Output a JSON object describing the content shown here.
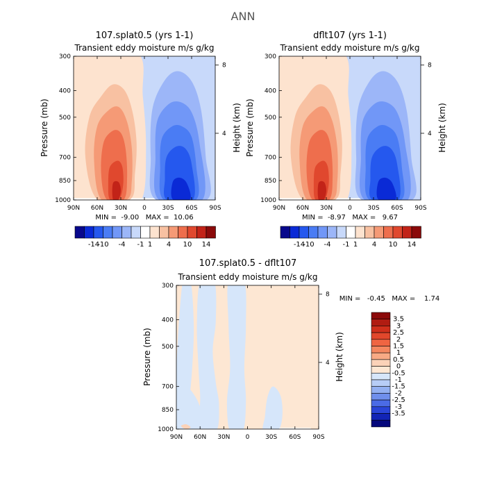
{
  "figure_title": "ANN",
  "chart_data": [
    {
      "type": "heatmap",
      "title": "107.splat0.5 (yrs 1-1)",
      "subtitle": "Transient eddy moisture m/s g/kg",
      "ylabel": "Pressure (mb)",
      "y2label": "Height (km)",
      "x_ticks": [
        "90N",
        "60N",
        "30N",
        "0",
        "30S",
        "60S",
        "90S"
      ],
      "y_ticks": [
        "300",
        "400",
        "500",
        "700",
        "850",
        "1000"
      ],
      "y_ticks_values": [
        300,
        400,
        500,
        700,
        850,
        1000
      ],
      "y2_ticks": [
        "8",
        "4"
      ],
      "ylim": [
        1000,
        300
      ],
      "xlim": [
        90,
        -90
      ],
      "stats": "MIN =  -9.00   MAX =  10.06",
      "min": -9.0,
      "max": 10.06,
      "colorbar_labels": [
        "-14",
        "-10",
        "-4",
        "-1",
        "1",
        "4",
        "10",
        "14"
      ],
      "cores": [
        {
          "lat": 28,
          "p": 960,
          "value": 10.06
        },
        {
          "lat": -42,
          "p": 975,
          "value": -9.0
        }
      ]
    },
    {
      "type": "heatmap",
      "title": "dflt107 (yrs 1-1)",
      "subtitle": "Transient eddy moisture m/s g/kg",
      "ylabel": "Pressure (mb)",
      "y2label": "Height (km)",
      "x_ticks": [
        "90N",
        "60N",
        "30N",
        "0",
        "30S",
        "60S",
        "90S"
      ],
      "y_ticks": [
        "300",
        "400",
        "500",
        "700",
        "850",
        "1000"
      ],
      "y_ticks_values": [
        300,
        400,
        500,
        700,
        850,
        1000
      ],
      "y2_ticks": [
        "8",
        "4"
      ],
      "ylim": [
        1000,
        300
      ],
      "xlim": [
        90,
        -90
      ],
      "stats": "MIN =  -8.97   MAX =   9.67",
      "min": -8.97,
      "max": 9.67,
      "colorbar_labels": [
        "-14",
        "-10",
        "-4",
        "-1",
        "1",
        "4",
        "10",
        "14"
      ],
      "cores": [
        {
          "lat": 28,
          "p": 960,
          "value": 9.67
        },
        {
          "lat": -42,
          "p": 975,
          "value": -8.97
        }
      ]
    },
    {
      "type": "heatmap",
      "title": "107.splat0.5 - dflt107",
      "subtitle": "Transient eddy moisture m/s g/kg",
      "ylabel": "Pressure (mb)",
      "y2label": "Height (km)",
      "x_ticks": [
        "90N",
        "60N",
        "30N",
        "0",
        "30S",
        "60S",
        "90S"
      ],
      "y_ticks": [
        "300",
        "400",
        "500",
        "700",
        "850",
        "1000"
      ],
      "y_ticks_values": [
        300,
        400,
        500,
        700,
        850,
        1000
      ],
      "y2_ticks": [
        "8",
        "4"
      ],
      "ylim": [
        1000,
        300
      ],
      "xlim": [
        90,
        -90
      ],
      "stats": "MIN =   -0.45   MAX =    1.74",
      "min": -0.45,
      "max": 1.74,
      "colorbar_labels": [
        "3.5",
        "3",
        "2.5",
        "2",
        "1.5",
        "1",
        "0.5",
        "0",
        "-0.5",
        "-1",
        "-1.5",
        "-2",
        "-2.5",
        "-3",
        "-3.5"
      ],
      "negative_bands_lat": [
        [
          75,
          40
        ],
        [
          25,
          2
        ]
      ]
    }
  ],
  "colors": {
    "abs_scale": [
      "#08088c",
      "#0a2ad6",
      "#2558ee",
      "#4a7cf4",
      "#7197f7",
      "#9cb6f8",
      "#c8d9fa",
      "#ffffff",
      "#fde3cf",
      "#f8c1a2",
      "#f59a76",
      "#ee6e4d",
      "#e0482e",
      "#c22318",
      "#8b0a0a"
    ],
    "diff_scale": [
      "#8b0a0a",
      "#b01c12",
      "#cf2f1b",
      "#e2472b",
      "#ef6542",
      "#f4875f",
      "#f8aa85",
      "#fbd2b8",
      "#fde7d3",
      "#d6e6fa",
      "#b7cdf6",
      "#93b0f1",
      "#6f8fec",
      "#4b6be6",
      "#2a45d8",
      "#1224b6",
      "#05087c"
    ]
  }
}
